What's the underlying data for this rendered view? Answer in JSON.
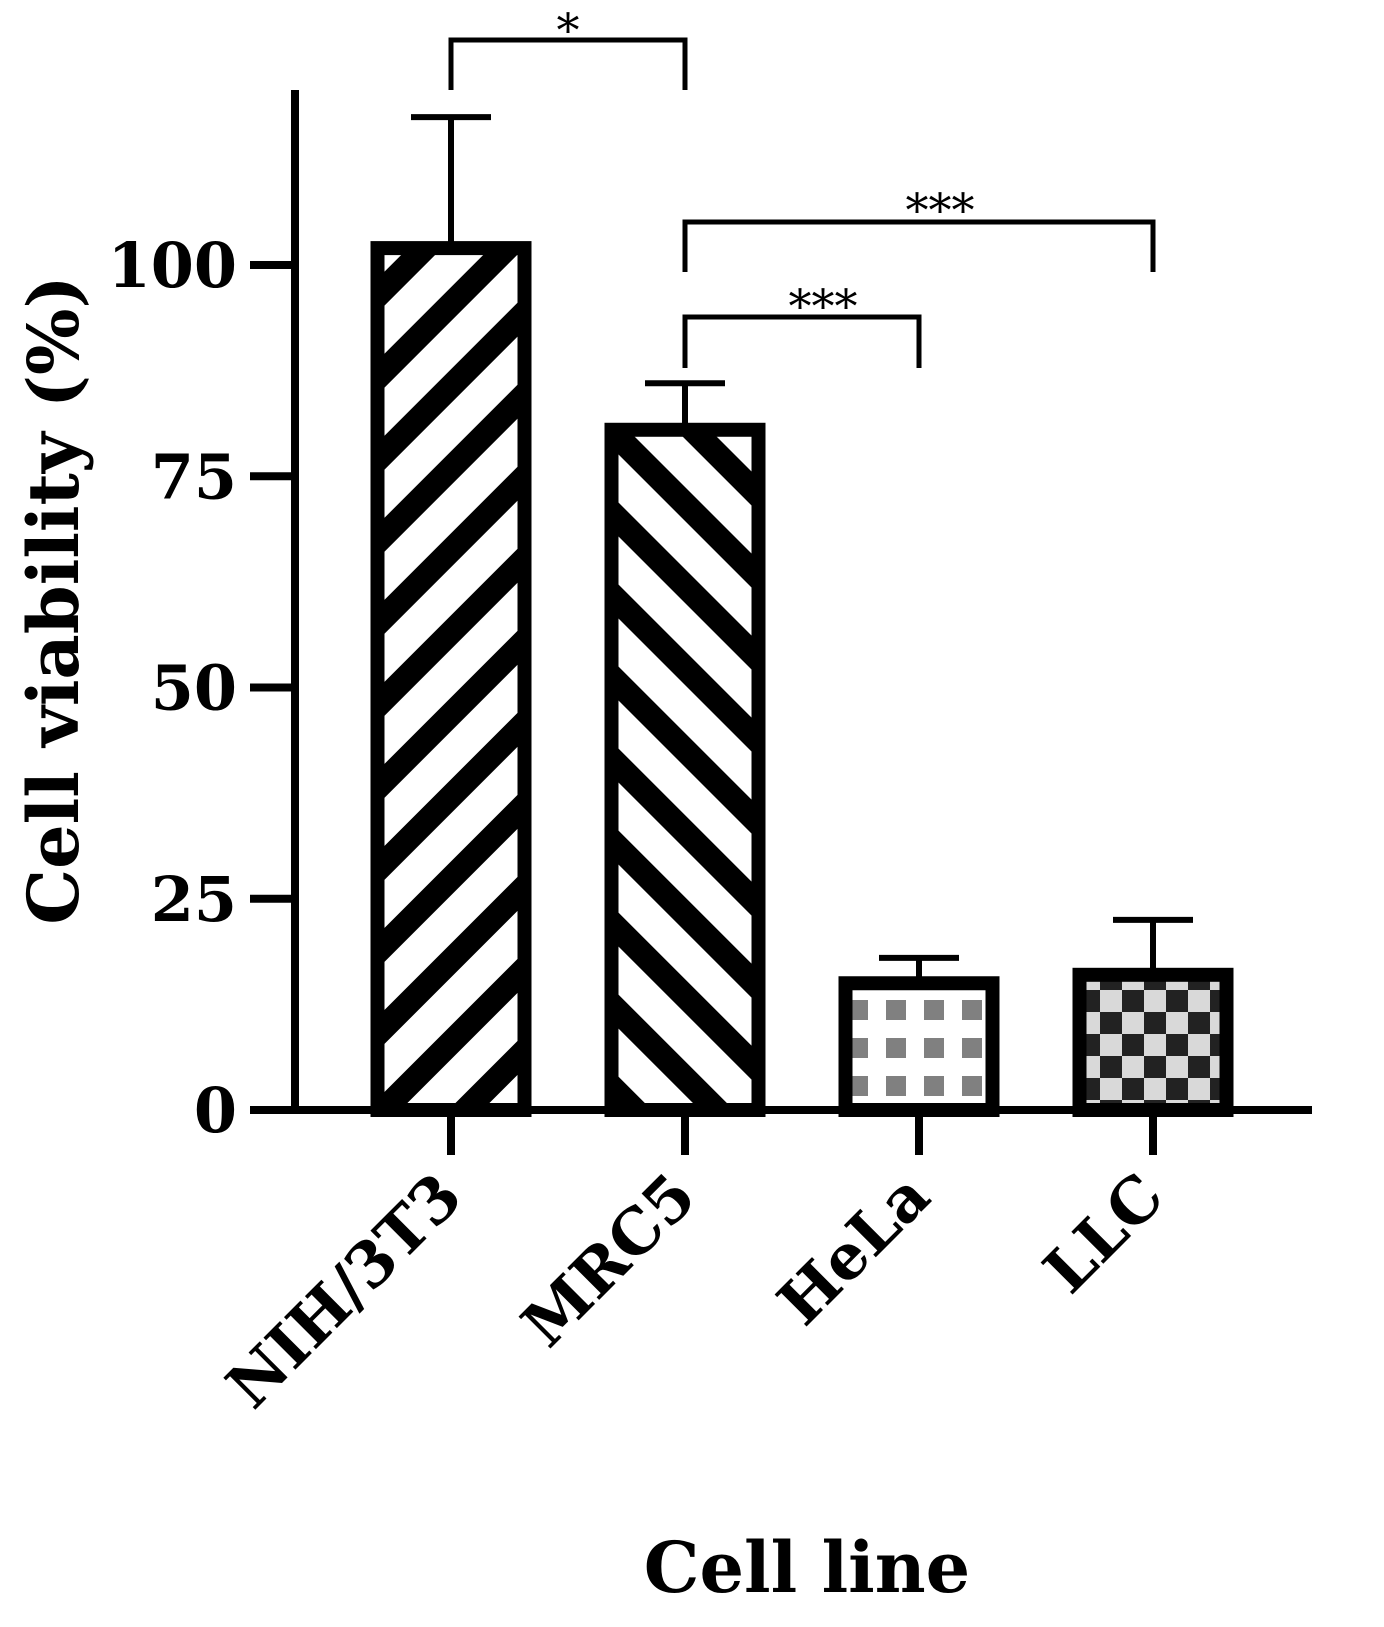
{
  "chart_data": {
    "type": "bar",
    "title": "",
    "xlabel": "Cell line",
    "ylabel": "Cell viability (%)",
    "categories": [
      "NIH/3T3",
      "MRC5",
      "HeLa",
      "LLC"
    ],
    "values": [
      102,
      80.5,
      15,
      16
    ],
    "error_upper": [
      117.5,
      86,
      18,
      22.5
    ],
    "ylim": [
      0,
      120
    ],
    "yticks": [
      0,
      25,
      50,
      75,
      100
    ],
    "ytick_labels": [
      "0",
      "25",
      "50",
      "75",
      "100"
    ],
    "patterns": [
      "diagonal-stripes-up",
      "diagonal-stripes-down",
      "grid-dots",
      "checkerboard"
    ],
    "significance": [
      {
        "from": "NIH/3T3",
        "to": "MRC5",
        "label": "*"
      },
      {
        "from": "MRC5",
        "to": "LLC",
        "label": "***"
      },
      {
        "from": "MRC5",
        "to": "HeLa",
        "label": "***"
      }
    ],
    "grid": false,
    "colors": {
      "stroke": "#000000",
      "grid_fill": "#808080",
      "checker_light": "#d9d9d9",
      "checker_dark": "#222222"
    }
  }
}
